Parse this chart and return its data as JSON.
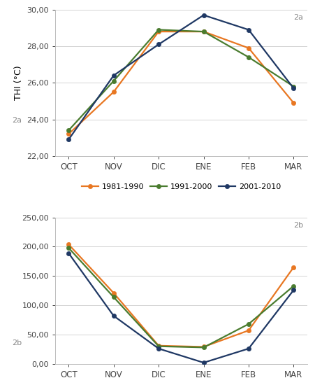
{
  "months": [
    "OCT",
    "NOV",
    "DIC",
    "ENE",
    "FEB",
    "MAR"
  ],
  "thi_1981_1990": [
    23.2,
    25.5,
    28.8,
    28.8,
    27.9,
    24.9
  ],
  "thi_1991_2000": [
    23.4,
    26.1,
    28.9,
    28.8,
    27.4,
    25.8
  ],
  "thi_2001_2010": [
    22.9,
    26.4,
    28.1,
    29.7,
    28.9,
    25.7
  ],
  "p_1981_1990": [
    204,
    121,
    31,
    29,
    57,
    165
  ],
  "p_1991_2000": [
    198,
    114,
    30,
    28,
    68,
    133
  ],
  "p_2001_2010": [
    189,
    82,
    26,
    2,
    26,
    126
  ],
  "color_1981": "#E87722",
  "color_1991": "#4a7c2f",
  "color_2001": "#1f3864",
  "thi_ylim": [
    22.0,
    30.0
  ],
  "thi_yticks": [
    22.0,
    24.0,
    26.0,
    28.0,
    30.0
  ],
  "p_ylim": [
    0.0,
    250.0
  ],
  "p_yticks": [
    0.0,
    50.0,
    100.0,
    150.0,
    200.0,
    250.0
  ],
  "label_1981": "1981-1990",
  "label_1991": "1991-2000",
  "label_2001": "2001-2010",
  "thi_ylabel": "THI (°C)",
  "tag_a": "2a",
  "tag_b": "2b",
  "tag_left_a": "2a",
  "tag_left_b": "2b"
}
